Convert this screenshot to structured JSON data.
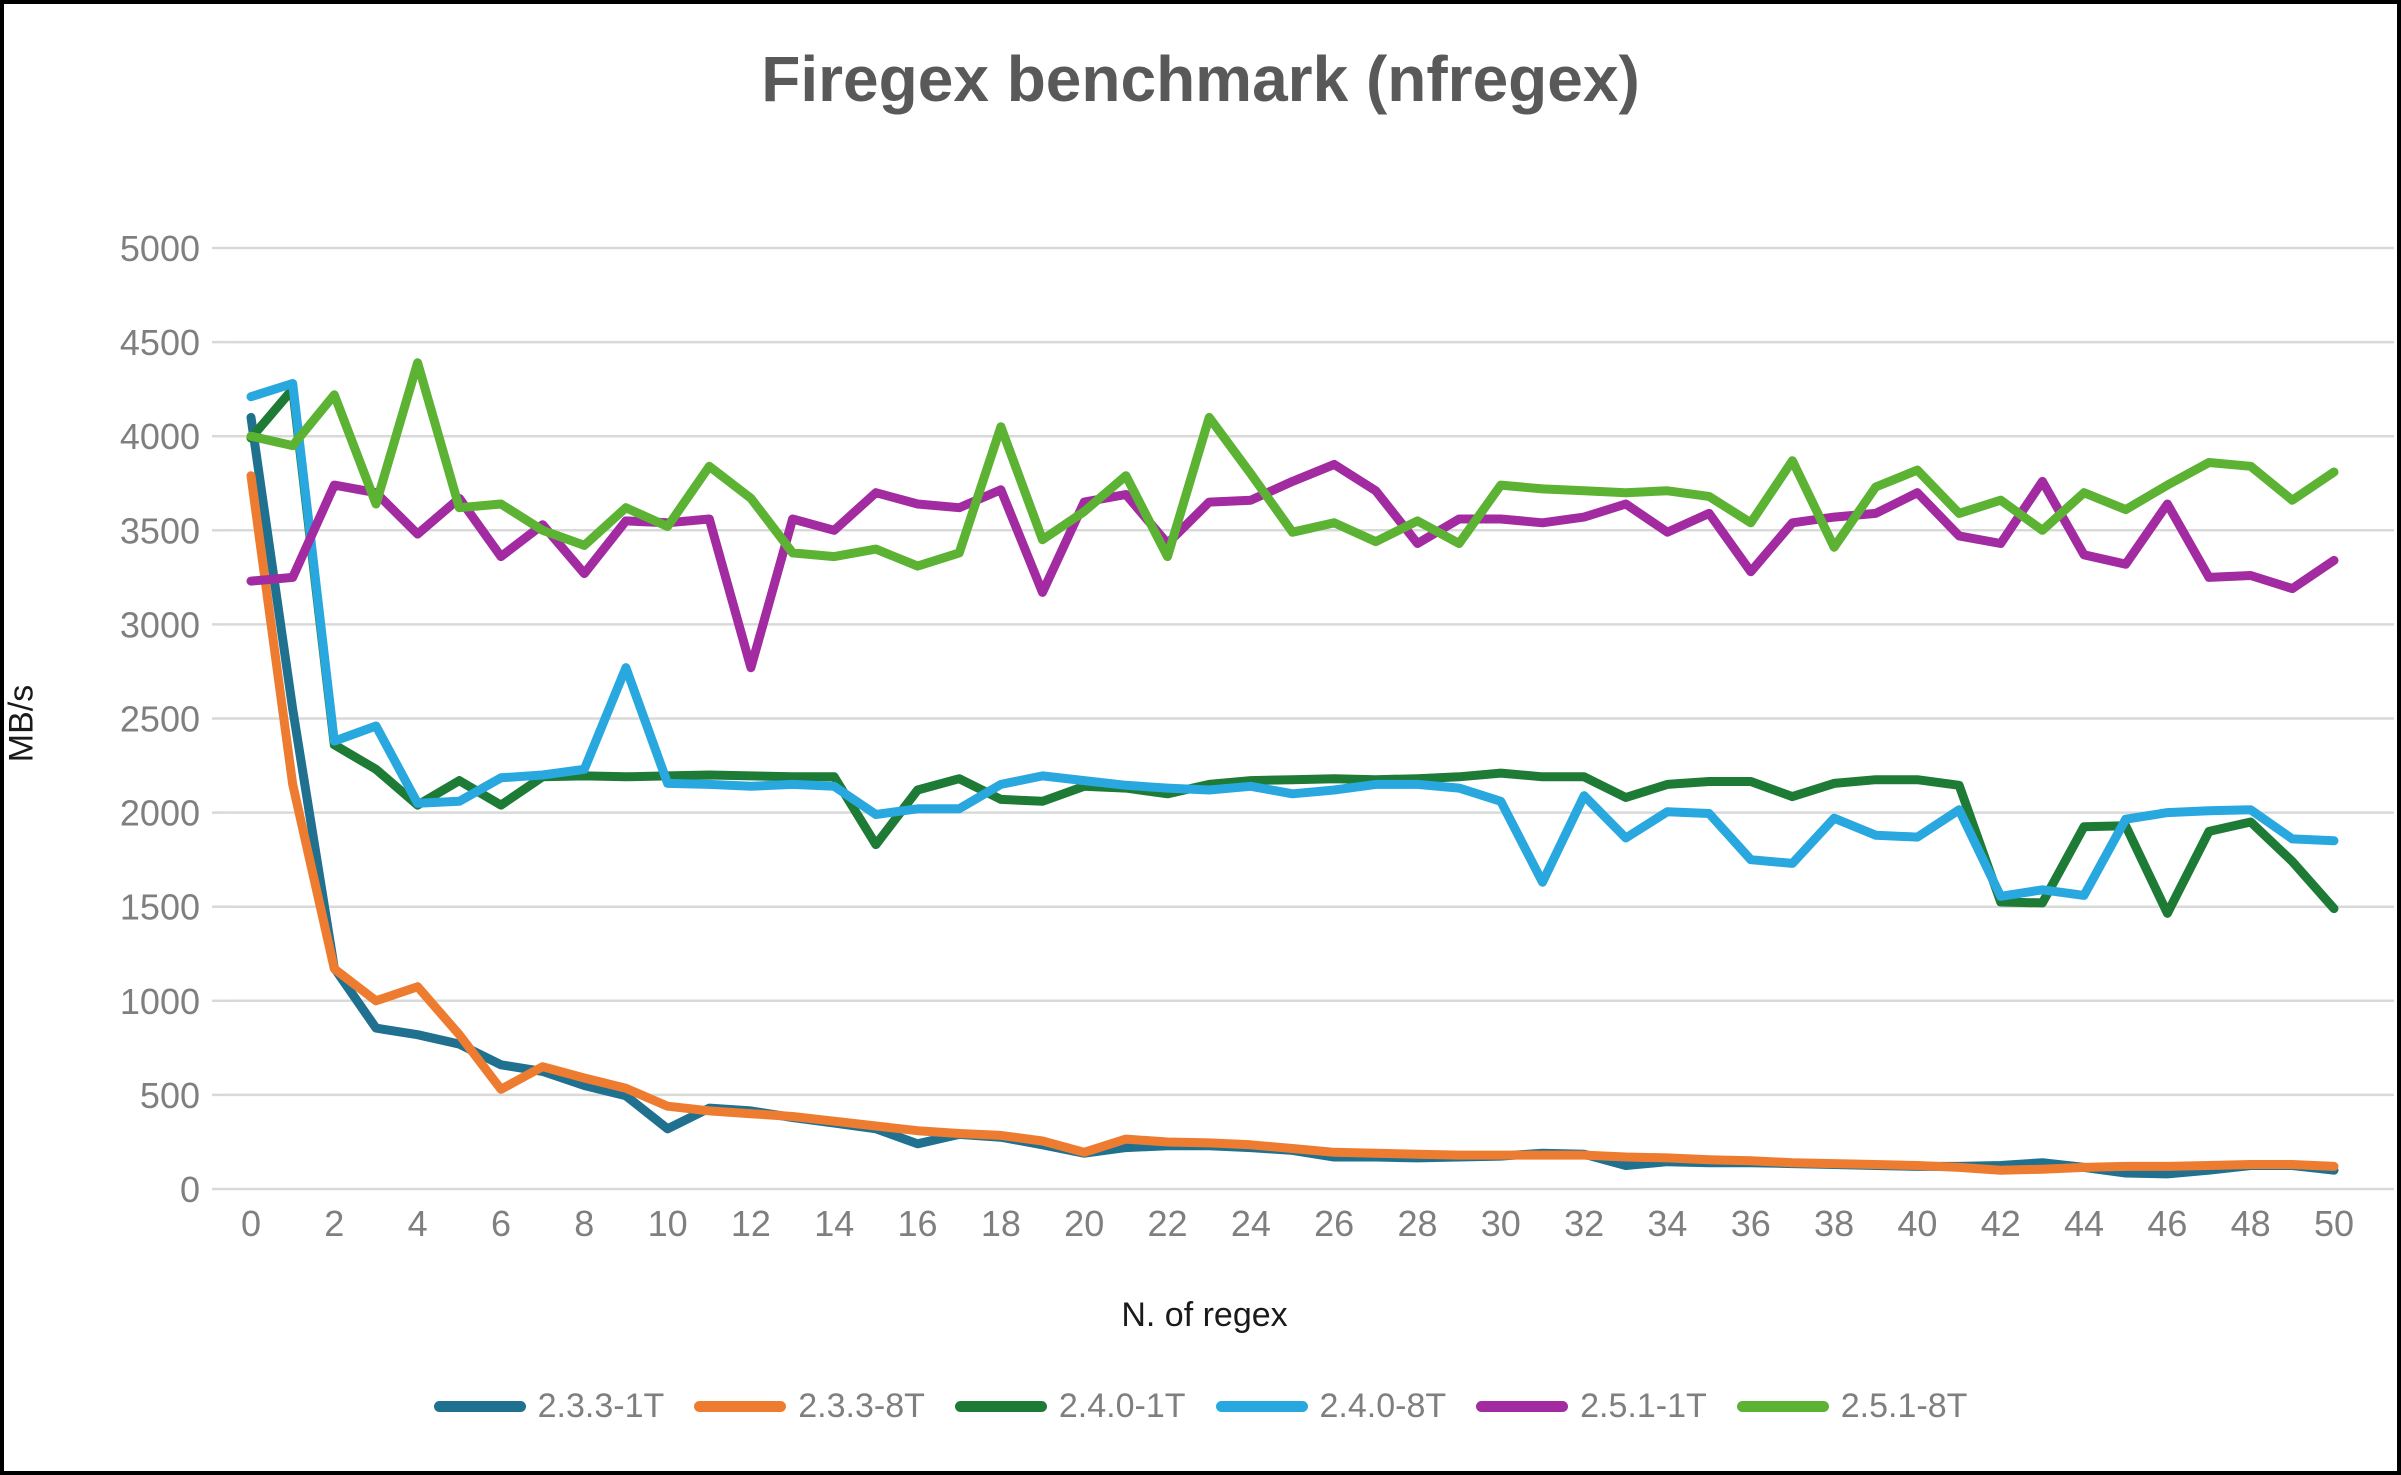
{
  "header": {
    "title": "Firegex benchmark (nfregex)"
  },
  "axes": {
    "y_title": "MB/s",
    "x_title": "N. of regex"
  },
  "palette": {
    "grid": "#d9d9d9",
    "tick_text": "#7f7f7f",
    "title_text": "#595959",
    "axis_title_text": "#1a1a1a"
  },
  "chart_data": {
    "type": "line",
    "title": "Firegex benchmark (nfregex)",
    "xlabel": "N. of regex",
    "ylabel": "MB/s",
    "x_min": 0,
    "x_max": 50,
    "ylim": [
      0,
      5000
    ],
    "grid": "horizontal",
    "legend_position": "bottom",
    "x_ticks": [
      0,
      2,
      4,
      6,
      8,
      10,
      12,
      14,
      16,
      18,
      20,
      22,
      24,
      26,
      28,
      30,
      32,
      34,
      36,
      38,
      40,
      42,
      44,
      46,
      48,
      50
    ],
    "y_ticks": [
      0,
      500,
      1000,
      1500,
      2000,
      2500,
      3000,
      3500,
      4000,
      4500,
      5000
    ],
    "x": [
      0,
      1,
      2,
      3,
      4,
      5,
      6,
      7,
      8,
      9,
      10,
      11,
      12,
      13,
      14,
      15,
      16,
      17,
      18,
      19,
      20,
      21,
      22,
      23,
      24,
      25,
      26,
      27,
      28,
      29,
      30,
      31,
      32,
      33,
      34,
      35,
      36,
      37,
      38,
      39,
      40,
      41,
      42,
      43,
      44,
      45,
      46,
      47,
      48,
      49,
      50
    ],
    "series": [
      {
        "name": "2.3.3-1T",
        "color": "#20708f",
        "values": [
          4100,
          2550,
          1175,
          855,
          820,
          770,
          660,
          625,
          550,
          495,
          320,
          430,
          415,
          380,
          350,
          320,
          240,
          290,
          275,
          235,
          190,
          220,
          230,
          230,
          220,
          205,
          170,
          170,
          165,
          170,
          175,
          190,
          185,
          125,
          145,
          140,
          140,
          135,
          130,
          125,
          120,
          120,
          125,
          140,
          115,
          85,
          80,
          100,
          125,
          125,
          100
        ]
      },
      {
        "name": "2.3.3-8T",
        "color": "#ee7c30",
        "values": [
          3790,
          2150,
          1170,
          1000,
          1075,
          820,
          530,
          650,
          590,
          535,
          440,
          415,
          400,
          385,
          360,
          335,
          310,
          295,
          285,
          255,
          195,
          265,
          250,
          245,
          235,
          215,
          195,
          190,
          185,
          180,
          180,
          180,
          180,
          170,
          165,
          155,
          150,
          140,
          135,
          130,
          125,
          115,
          100,
          105,
          115,
          120,
          120,
          125,
          130,
          130,
          120
        ]
      },
      {
        "name": "2.4.0-1T",
        "color": "#1e7b35",
        "values": [
          3990,
          4250,
          2360,
          2230,
          2040,
          2170,
          2040,
          2190,
          2195,
          2190,
          2195,
          2200,
          2195,
          2190,
          2190,
          1830,
          2120,
          2180,
          2070,
          2060,
          2140,
          2130,
          2100,
          2150,
          2170,
          2175,
          2180,
          2175,
          2180,
          2190,
          2210,
          2190,
          2190,
          2080,
          2150,
          2165,
          2165,
          2085,
          2155,
          2175,
          2175,
          2145,
          1525,
          1520,
          1925,
          1930,
          1465,
          1900,
          1950,
          1740,
          1490
        ]
      },
      {
        "name": "2.4.0-8T",
        "color": "#29a8e0",
        "values": [
          4210,
          4280,
          2380,
          2460,
          2050,
          2060,
          2185,
          2200,
          2230,
          2770,
          2155,
          2150,
          2140,
          2150,
          2140,
          1990,
          2020,
          2020,
          2150,
          2195,
          2170,
          2145,
          2130,
          2120,
          2140,
          2100,
          2120,
          2150,
          2150,
          2130,
          2060,
          1630,
          2090,
          1865,
          2005,
          1995,
          1750,
          1730,
          1970,
          1880,
          1870,
          2015,
          1555,
          1590,
          1560,
          1965,
          2000,
          2010,
          2015,
          1860,
          1850
        ]
      },
      {
        "name": "2.5.1-1T",
        "color": "#a32ba1",
        "values": [
          3230,
          3250,
          3740,
          3700,
          3480,
          3670,
          3360,
          3530,
          3270,
          3550,
          3540,
          3560,
          2770,
          3560,
          3500,
          3700,
          3640,
          3620,
          3715,
          3170,
          3650,
          3690,
          3430,
          3650,
          3660,
          3760,
          3850,
          3710,
          3430,
          3560,
          3560,
          3540,
          3570,
          3640,
          3490,
          3590,
          3280,
          3540,
          3570,
          3590,
          3700,
          3470,
          3430,
          3760,
          3370,
          3320,
          3640,
          3250,
          3260,
          3190,
          3340
        ]
      },
      {
        "name": "2.5.1-8T",
        "color": "#5bb233",
        "values": [
          4000,
          3950,
          4220,
          3640,
          4390,
          3620,
          3640,
          3500,
          3420,
          3620,
          3520,
          3840,
          3670,
          3380,
          3360,
          3400,
          3310,
          3380,
          4050,
          3450,
          3600,
          3790,
          3360,
          4100,
          3800,
          3490,
          3540,
          3440,
          3550,
          3430,
          3740,
          3720,
          3710,
          3700,
          3710,
          3680,
          3540,
          3870,
          3410,
          3730,
          3820,
          3590,
          3660,
          3500,
          3700,
          3610,
          3740,
          3860,
          3840,
          3660,
          3810
        ]
      }
    ]
  },
  "layout_note": ""
}
